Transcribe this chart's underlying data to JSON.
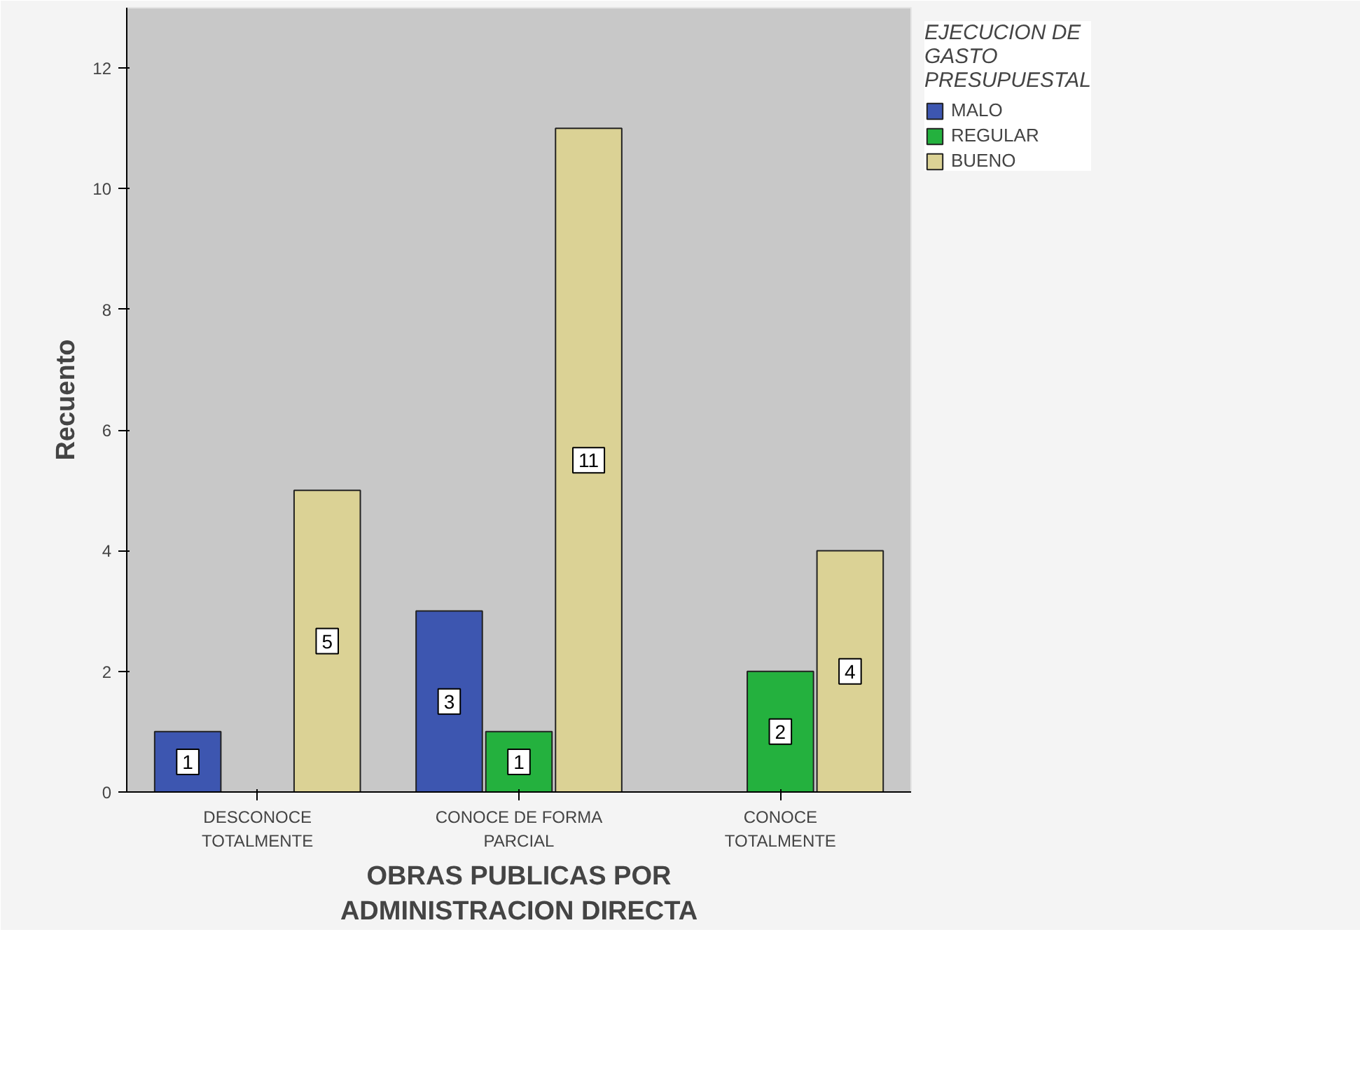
{
  "chart_data": {
    "type": "bar",
    "xlabel": "OBRAS PUBLICAS POR ADMINISTRACION DIRECTA",
    "ylabel": "Recuento",
    "legend_title": "EJECUCION DE GASTO PRESUPUESTAL",
    "categories": [
      "DESCONOCE TOTALMENTE",
      "CONOCE DE FORMA PARCIAL",
      "CONOCE TOTALMENTE"
    ],
    "series": [
      {
        "name": "MALO",
        "color": "#3d56b0",
        "values": [
          1,
          3,
          null
        ]
      },
      {
        "name": "REGULAR",
        "color": "#24b13e",
        "values": [
          null,
          1,
          2
        ]
      },
      {
        "name": "BUENO",
        "color": "#dbd295",
        "values": [
          5,
          11,
          4
        ]
      }
    ],
    "ylim": [
      0,
      13
    ],
    "yticks": [
      0,
      2,
      4,
      6,
      8,
      10,
      12
    ],
    "grid": false,
    "legend": "top right",
    "data_labels": true
  }
}
